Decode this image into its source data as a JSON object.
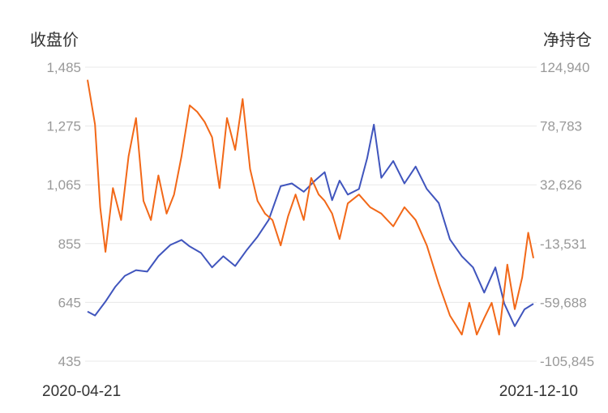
{
  "chart_data": {
    "type": "line",
    "left_axis_title": "收盘价",
    "right_axis_title": "净持仓",
    "left_ticks": [
      "1,485",
      "1,275",
      "1,065",
      "855",
      "645",
      "435"
    ],
    "right_ticks": [
      "124,940",
      "78,783",
      "32,626",
      "-13,531",
      "-59,688",
      "-105,845"
    ],
    "left_ylim": [
      435,
      1485
    ],
    "right_ylim": [
      -105845,
      124940
    ],
    "x_start_label": "2020-04-21",
    "x_end_label": "2021-12-10",
    "x_range": [
      "2020-04-21",
      "2021-12-10"
    ],
    "grid": true,
    "series": [
      {
        "axis": "left",
        "color": "#4055bd",
        "points": [
          [
            "2020-04-21",
            612
          ],
          [
            "2020-05-01",
            598
          ],
          [
            "2020-05-15",
            648
          ],
          [
            "2020-05-28",
            700
          ],
          [
            "2020-06-10",
            740
          ],
          [
            "2020-06-25",
            760
          ],
          [
            "2020-07-10",
            755
          ],
          [
            "2020-07-25",
            810
          ],
          [
            "2020-08-10",
            850
          ],
          [
            "2020-08-25",
            868
          ],
          [
            "2020-09-05",
            845
          ],
          [
            "2020-09-20",
            822
          ],
          [
            "2020-10-05",
            770
          ],
          [
            "2020-10-20",
            810
          ],
          [
            "2020-11-05",
            775
          ],
          [
            "2020-11-20",
            830
          ],
          [
            "2020-12-05",
            880
          ],
          [
            "2020-12-20",
            940
          ],
          [
            "2021-01-05",
            1060
          ],
          [
            "2021-01-20",
            1070
          ],
          [
            "2021-02-05",
            1040
          ],
          [
            "2021-02-20",
            1080
          ],
          [
            "2021-03-05",
            1110
          ],
          [
            "2021-03-15",
            1010
          ],
          [
            "2021-03-25",
            1080
          ],
          [
            "2021-04-05",
            1030
          ],
          [
            "2021-04-20",
            1050
          ],
          [
            "2021-05-01",
            1160
          ],
          [
            "2021-05-10",
            1280
          ],
          [
            "2021-05-20",
            1090
          ],
          [
            "2021-06-05",
            1150
          ],
          [
            "2021-06-20",
            1070
          ],
          [
            "2021-07-05",
            1130
          ],
          [
            "2021-07-20",
            1050
          ],
          [
            "2021-08-05",
            1000
          ],
          [
            "2021-08-20",
            870
          ],
          [
            "2021-09-05",
            810
          ],
          [
            "2021-09-20",
            770
          ],
          [
            "2021-10-05",
            680
          ],
          [
            "2021-10-20",
            770
          ],
          [
            "2021-11-01",
            640
          ],
          [
            "2021-11-15",
            560
          ],
          [
            "2021-11-28",
            620
          ],
          [
            "2021-12-10",
            640
          ]
        ]
      },
      {
        "axis": "right",
        "color": "#f26818",
        "points": [
          [
            "2020-04-21",
            115000
          ],
          [
            "2020-05-01",
            80000
          ],
          [
            "2020-05-08",
            15000
          ],
          [
            "2020-05-15",
            -20000
          ],
          [
            "2020-05-25",
            30000
          ],
          [
            "2020-06-05",
            5000
          ],
          [
            "2020-06-15",
            55000
          ],
          [
            "2020-06-25",
            85000
          ],
          [
            "2020-07-05",
            20000
          ],
          [
            "2020-07-15",
            5000
          ],
          [
            "2020-07-25",
            40000
          ],
          [
            "2020-08-05",
            10000
          ],
          [
            "2020-08-15",
            25000
          ],
          [
            "2020-08-25",
            55000
          ],
          [
            "2020-09-05",
            95000
          ],
          [
            "2020-09-15",
            90000
          ],
          [
            "2020-09-25",
            82000
          ],
          [
            "2020-10-05",
            70000
          ],
          [
            "2020-10-15",
            30000
          ],
          [
            "2020-10-25",
            85000
          ],
          [
            "2020-11-05",
            60000
          ],
          [
            "2020-11-15",
            100000
          ],
          [
            "2020-11-25",
            45000
          ],
          [
            "2020-12-05",
            20000
          ],
          [
            "2020-12-15",
            10000
          ],
          [
            "2020-12-25",
            5000
          ],
          [
            "2021-01-05",
            -15000
          ],
          [
            "2021-01-15",
            8000
          ],
          [
            "2021-01-25",
            25000
          ],
          [
            "2021-02-05",
            5000
          ],
          [
            "2021-02-15",
            38000
          ],
          [
            "2021-02-25",
            25000
          ],
          [
            "2021-03-05",
            20000
          ],
          [
            "2021-03-15",
            10000
          ],
          [
            "2021-03-25",
            -10000
          ],
          [
            "2021-04-05",
            18000
          ],
          [
            "2021-04-20",
            25000
          ],
          [
            "2021-05-05",
            15000
          ],
          [
            "2021-05-20",
            10000
          ],
          [
            "2021-06-05",
            0
          ],
          [
            "2021-06-20",
            15000
          ],
          [
            "2021-07-05",
            5000
          ],
          [
            "2021-07-20",
            -15000
          ],
          [
            "2021-08-05",
            -45000
          ],
          [
            "2021-08-20",
            -70000
          ],
          [
            "2021-09-05",
            -85000
          ],
          [
            "2021-09-15",
            -60000
          ],
          [
            "2021-09-25",
            -85000
          ],
          [
            "2021-10-05",
            -72000
          ],
          [
            "2021-10-15",
            -60000
          ],
          [
            "2021-10-25",
            -85000
          ],
          [
            "2021-11-05",
            -30000
          ],
          [
            "2021-11-15",
            -65000
          ],
          [
            "2021-11-25",
            -40000
          ],
          [
            "2021-12-03",
            -5000
          ],
          [
            "2021-12-10",
            -25000
          ]
        ]
      }
    ]
  }
}
